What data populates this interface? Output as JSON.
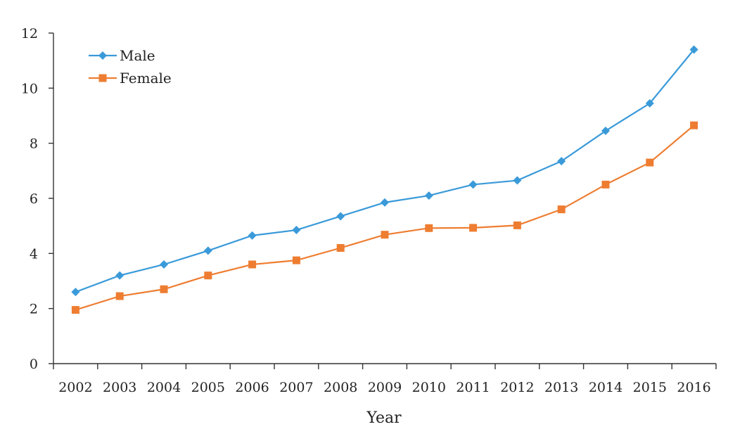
{
  "chart_data": {
    "type": "line",
    "title": "",
    "xlabel": "Year",
    "ylabel": "",
    "ylim": [
      0,
      12
    ],
    "yticks": [
      0,
      2,
      4,
      6,
      8,
      10,
      12
    ],
    "grid": false,
    "legend_position": "top-left",
    "categories": [
      "2002",
      "2003",
      "2004",
      "2005",
      "2006",
      "2007",
      "2008",
      "2009",
      "2010",
      "2011",
      "2012",
      "2013",
      "2014",
      "2015",
      "2016"
    ],
    "series": [
      {
        "name": "Male",
        "color": "#3a9ad9",
        "marker": "diamond",
        "values": [
          2.6,
          3.2,
          3.6,
          4.1,
          4.65,
          4.85,
          5.35,
          5.85,
          6.1,
          6.5,
          6.65,
          7.35,
          8.45,
          9.45,
          11.4
        ]
      },
      {
        "name": "Female",
        "color": "#ee7d31",
        "marker": "square",
        "values": [
          1.95,
          2.45,
          2.7,
          3.2,
          3.6,
          3.75,
          4.2,
          4.68,
          4.92,
          4.93,
          5.02,
          5.6,
          6.5,
          7.3,
          8.65
        ]
      }
    ]
  }
}
